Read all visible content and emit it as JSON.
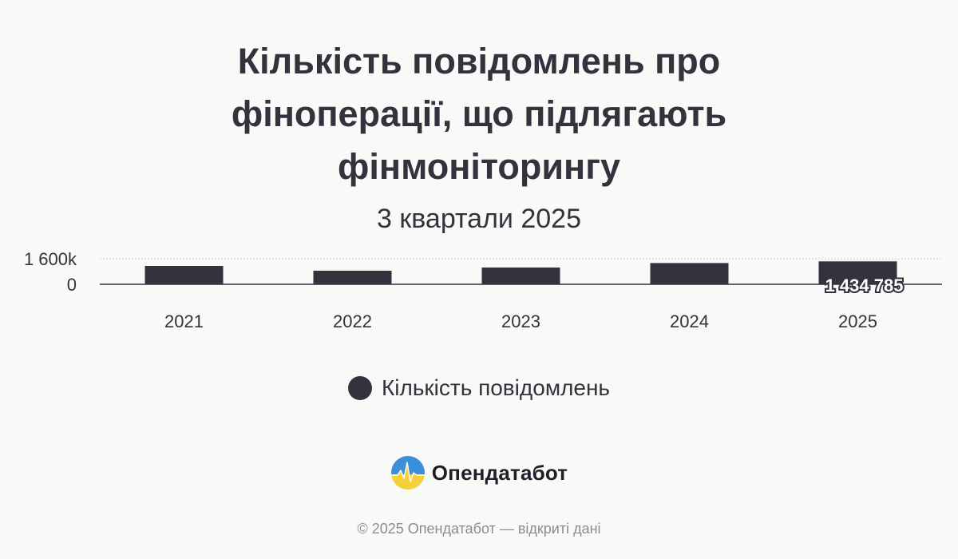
{
  "colors": {
    "background": "#f8faf8",
    "bar": "#33333d",
    "text": "#33333d",
    "grid": "#cfd3d0",
    "footer_text": "#8b8b93",
    "logo_blue": "#3b8fd9",
    "logo_yellow": "#f5d03a"
  },
  "chart_data": {
    "type": "bar",
    "title": "Кількість повідомлень про фінoперації, що підлягають фінмоніторингу",
    "title_lines": [
      "Кількість повідомлень про",
      "фіноперації, що підлягають",
      "фінмоніторингу"
    ],
    "subtitle": "3 квартали 2025",
    "categories": [
      "2021",
      "2022",
      "2023",
      "2024",
      "2025"
    ],
    "series": [
      {
        "name": "Кількість повідомлень",
        "values": [
          1150000,
          850000,
          1050000,
          1330000,
          1434785
        ]
      }
    ],
    "ylim": [
      0,
      1600000
    ],
    "y_tick_labels": [
      "0",
      "1 600k"
    ],
    "data_labels": [
      {
        "category": "2025",
        "text": "1 434 785"
      }
    ],
    "grid": true,
    "legend_position": "bottom"
  },
  "legend": {
    "label": "Кількість повідомлень",
    "icon": "circle-swatch-icon"
  },
  "brand": {
    "name": "Опендатабот",
    "icon": "opendatabot-logo-icon"
  },
  "footer": {
    "note": "© 2025 Опендатабот — відкриті дані"
  }
}
